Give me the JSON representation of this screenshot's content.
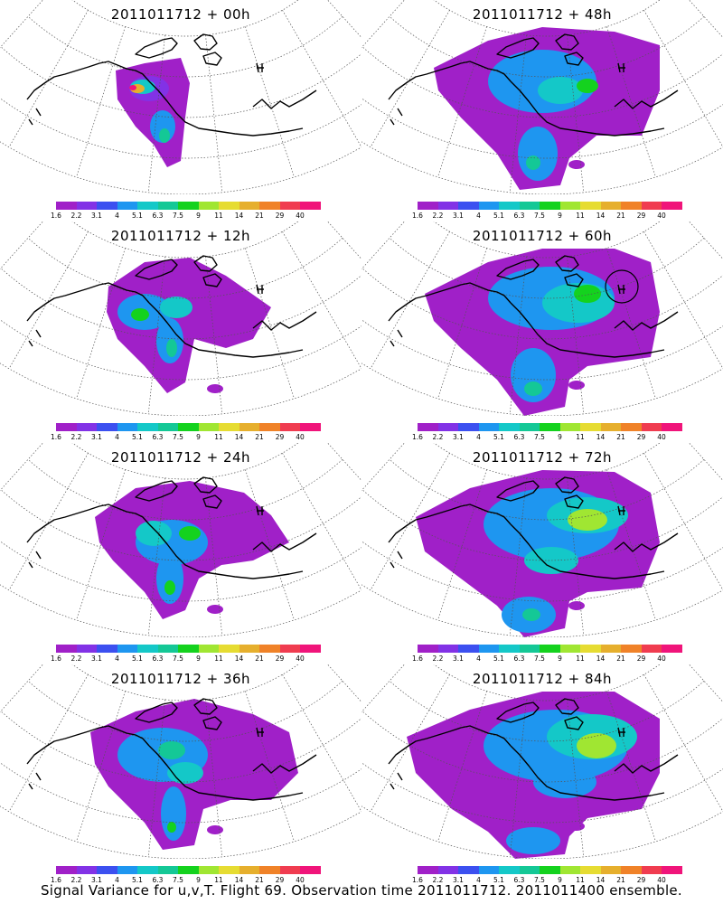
{
  "footer": "Signal Variance for u,v,T. Flight 69. Observation time 2011011712. 2011011400 ensemble.",
  "colorbar": {
    "labels": [
      "1.6",
      "2.2",
      "3.1",
      "4",
      "5.1",
      "6.3",
      "7.5",
      "9",
      "11",
      "14",
      "21",
      "29",
      "40"
    ],
    "colors": [
      "#a020c8",
      "#8232e6",
      "#3c50f0",
      "#1e96f0",
      "#14c8c8",
      "#14c896",
      "#14d21e",
      "#a0e632",
      "#e6dc32",
      "#e6af2d",
      "#f08228",
      "#f03c50",
      "#f0147a"
    ]
  },
  "panels": [
    {
      "title": "2011011712 + 00h",
      "forecast_hour": 0
    },
    {
      "title": "2011011712 + 48h",
      "forecast_hour": 48
    },
    {
      "title": "2011011712 + 12h",
      "forecast_hour": 12
    },
    {
      "title": "2011011712 + 60h",
      "forecast_hour": 60
    },
    {
      "title": "2011011712 + 24h",
      "forecast_hour": 24
    },
    {
      "title": "2011011712 + 72h",
      "forecast_hour": 72
    },
    {
      "title": "2011011712 + 36h",
      "forecast_hour": 36
    },
    {
      "title": "2011011712 + 84h",
      "forecast_hour": 84
    }
  ]
}
